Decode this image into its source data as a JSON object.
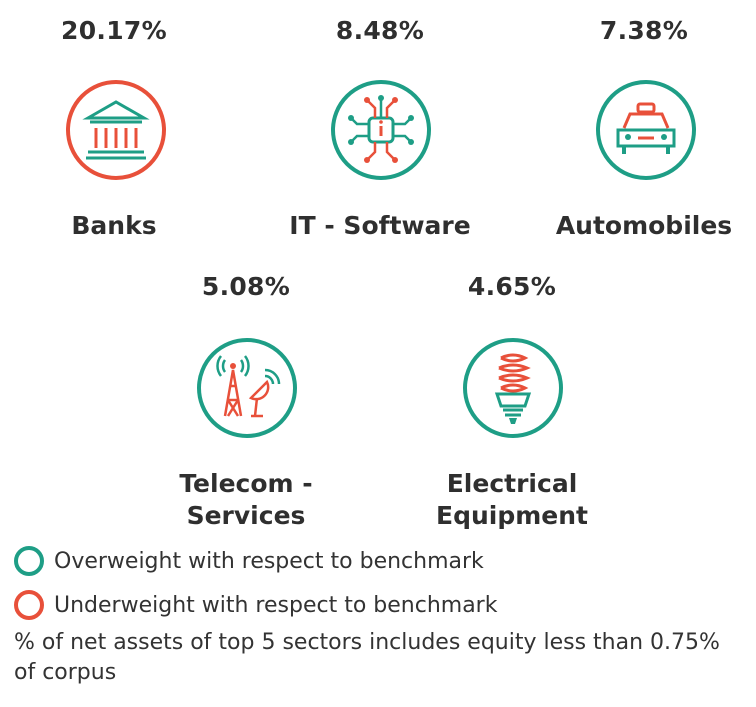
{
  "chart_data": {
    "type": "table",
    "items": [
      {
        "sector": "Banks",
        "value": "20.17%",
        "weight": "underweight",
        "icon": "bank-icon"
      },
      {
        "sector": "IT - Software",
        "value": "8.48%",
        "weight": "overweight",
        "icon": "chip-icon"
      },
      {
        "sector": "Automobiles",
        "value": "7.38%",
        "weight": "overweight",
        "icon": "car-icon"
      },
      {
        "sector_lines": [
          "Telecom -",
          "Services"
        ],
        "value": "5.08%",
        "weight": "overweight",
        "icon": "tower-icon"
      },
      {
        "sector_lines": [
          "Electrical",
          "Equipment"
        ],
        "value": "4.65%",
        "weight": "overweight",
        "icon": "bulb-icon"
      }
    ]
  },
  "colors": {
    "overweight": "#1e9e86",
    "underweight": "#e8503a"
  },
  "legend": {
    "overweight": "Overweight with respect to benchmark",
    "underweight": "Underweight with respect to benchmark"
  },
  "note": "% of net assets of top 5 sectors includes equity less than 0.75% of corpus"
}
